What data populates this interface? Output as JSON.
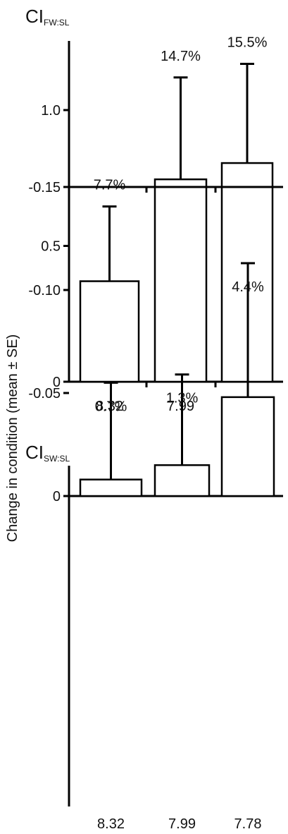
{
  "y_axis_label": "Change in condition (mean ± SE)",
  "chart_data": [
    {
      "type": "bar",
      "title_main": "CI",
      "title_sub": "FW:SL",
      "categories": [
        "8.32",
        "7.99",
        "7.78"
      ],
      "values": [
        0.37,
        0.745,
        0.805
      ],
      "errors": [
        0.275,
        0.375,
        0.365
      ],
      "annotations": [
        "7.7%",
        "14.7%",
        "15.5%"
      ],
      "ylim": [
        0,
        1.25
      ],
      "yticks": [
        0,
        0.5,
        1.0
      ],
      "ytick_labels": [
        "0",
        "0.5",
        "1.0"
      ],
      "xlabel": "",
      "ylabel": "Change in condition (mean ± SE)"
    },
    {
      "type": "bar",
      "title_main": "CI",
      "title_sub": "SW:SL",
      "categories": [
        "8.32",
        "7.99",
        "7.78"
      ],
      "values": [
        -0.008,
        -0.015,
        -0.048
      ],
      "errors": [
        0.047,
        0.044,
        0.065
      ],
      "annotations": [
        "0.7%",
        "1.3%",
        "4.4%"
      ],
      "ylim": [
        -0.15,
        0.025
      ],
      "yticks": [
        0,
        -0.05,
        -0.1,
        -0.15
      ],
      "ytick_labels": [
        "0",
        "-0.05",
        "-0.10",
        "-0.15"
      ],
      "xlabel": "",
      "ylabel": "Change in condition (mean ± SE)"
    }
  ]
}
